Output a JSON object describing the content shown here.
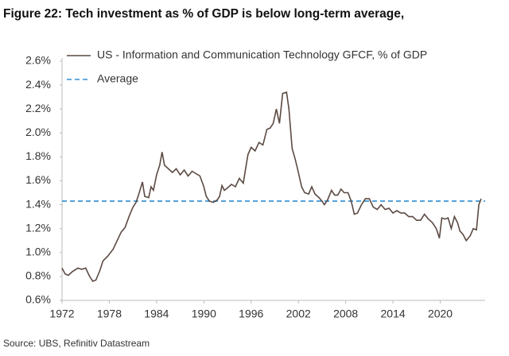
{
  "chart_data": {
    "type": "line",
    "title": "Figure 22: Tech investment as % of GDP is below long-term average,",
    "source": "Source: UBS, Refinitiv Datastream",
    "xlim": [
      1972,
      2025.7
    ],
    "xticks": [
      1972,
      1978,
      1984,
      1990,
      1996,
      2002,
      2008,
      2014,
      2020
    ],
    "ylim": [
      0.6,
      2.6
    ],
    "yticks": [
      {
        "value": 0.6,
        "label": "0.6%"
      },
      {
        "value": 0.8,
        "label": "0.8%"
      },
      {
        "value": 1.0,
        "label": "1.0%"
      },
      {
        "value": 1.2,
        "label": "1.2%"
      },
      {
        "value": 1.4,
        "label": "1.4%"
      },
      {
        "value": 1.6,
        "label": "1.6%"
      },
      {
        "value": 1.8,
        "label": "1.8%"
      },
      {
        "value": 2.0,
        "label": "2.0%"
      },
      {
        "value": 2.2,
        "label": "2.2%"
      },
      {
        "value": 2.4,
        "label": "2.4%"
      },
      {
        "value": 2.6,
        "label": "2.6%"
      }
    ],
    "grid": false,
    "series": [
      {
        "name": "US - Information and Communication Technology GFCF, % of GDP",
        "color": "#5b4a42",
        "x": [
          1972.0,
          1972.4,
          1972.8,
          1973.3,
          1974.0,
          1974.5,
          1975.0,
          1975.5,
          1975.9,
          1976.3,
          1976.8,
          1977.2,
          1977.8,
          1978.5,
          1979.0,
          1979.5,
          1980.0,
          1980.5,
          1981.0,
          1981.4,
          1981.8,
          1982.2,
          1982.5,
          1983.0,
          1983.3,
          1983.6,
          1984.0,
          1984.4,
          1984.7,
          1985.0,
          1985.5,
          1986.0,
          1986.5,
          1987.0,
          1987.5,
          1988.0,
          1988.5,
          1989.0,
          1989.5,
          1990.0,
          1990.3,
          1990.7,
          1991.2,
          1991.7,
          1992.0,
          1992.3,
          1992.6,
          1993.0,
          1993.5,
          1994.0,
          1994.5,
          1995.0,
          1995.3,
          1995.6,
          1996.0,
          1996.5,
          1997.0,
          1997.5,
          1998.0,
          1998.4,
          1998.8,
          1999.2,
          1999.6,
          2000.0,
          2000.5,
          2000.8,
          2001.2,
          2001.6,
          2002.0,
          2002.4,
          2002.8,
          2003.3,
          2003.7,
          2004.1,
          2004.6,
          2005.0,
          2005.3,
          2005.7,
          2006.2,
          2006.6,
          2007.0,
          2007.4,
          2007.8,
          2008.3,
          2008.7,
          2009.1,
          2009.5,
          2010.0,
          2010.5,
          2011.0,
          2011.5,
          2012.0,
          2012.5,
          2013.0,
          2013.5,
          2014.0,
          2014.5,
          2015.0,
          2015.5,
          2016.0,
          2016.5,
          2017.0,
          2017.5,
          2018.0,
          2018.5,
          2019.0,
          2019.5,
          2019.9,
          2020.2,
          2020.6,
          2021.0,
          2021.4,
          2021.8,
          2022.2,
          2022.5,
          2022.9,
          2023.3,
          2023.8,
          2024.2,
          2024.6,
          2024.9,
          2025.2
        ],
        "values": [
          0.87,
          0.82,
          0.81,
          0.84,
          0.87,
          0.86,
          0.87,
          0.8,
          0.76,
          0.77,
          0.85,
          0.93,
          0.97,
          1.03,
          1.1,
          1.17,
          1.21,
          1.3,
          1.38,
          1.42,
          1.5,
          1.59,
          1.47,
          1.46,
          1.55,
          1.52,
          1.65,
          1.73,
          1.84,
          1.73,
          1.7,
          1.67,
          1.7,
          1.65,
          1.69,
          1.64,
          1.68,
          1.66,
          1.64,
          1.55,
          1.47,
          1.43,
          1.42,
          1.44,
          1.47,
          1.56,
          1.52,
          1.54,
          1.57,
          1.55,
          1.62,
          1.58,
          1.7,
          1.82,
          1.88,
          1.85,
          1.92,
          1.9,
          2.03,
          2.04,
          2.08,
          2.2,
          2.08,
          2.33,
          2.34,
          2.2,
          1.87,
          1.78,
          1.67,
          1.55,
          1.5,
          1.49,
          1.55,
          1.49,
          1.46,
          1.43,
          1.4,
          1.44,
          1.52,
          1.48,
          1.48,
          1.53,
          1.5,
          1.5,
          1.43,
          1.32,
          1.33,
          1.4,
          1.45,
          1.45,
          1.38,
          1.36,
          1.4,
          1.36,
          1.37,
          1.33,
          1.35,
          1.33,
          1.33,
          1.3,
          1.3,
          1.27,
          1.27,
          1.32,
          1.28,
          1.25,
          1.2,
          1.12,
          1.29,
          1.28,
          1.29,
          1.2,
          1.3,
          1.25,
          1.18,
          1.15,
          1.1,
          1.14,
          1.2,
          1.19,
          1.4,
          1.45
        ]
      }
    ],
    "average": {
      "name": "Average",
      "color": "#2f8fd0",
      "value": 1.43
    }
  }
}
